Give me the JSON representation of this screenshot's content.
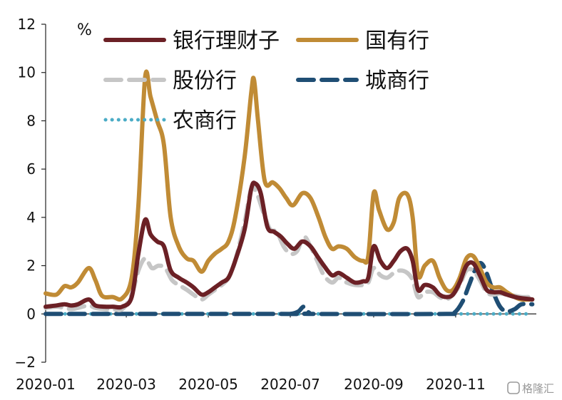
{
  "chart_data": {
    "type": "line",
    "title": "",
    "xlabel": "",
    "ylabel": "",
    "unit": "%",
    "ylim": [
      -2,
      12
    ],
    "yticks": [
      -2,
      0,
      2,
      4,
      6,
      8,
      10,
      12
    ],
    "xlim": [
      "2020-01-01",
      "2020-12-31"
    ],
    "xticks": [
      {
        "date": "2020-01-01",
        "label": "2020-01"
      },
      {
        "date": "2020-03-01",
        "label": "2020-03"
      },
      {
        "date": "2020-05-01",
        "label": "2020-05"
      },
      {
        "date": "2020-07-01",
        "label": "2020-07"
      },
      {
        "date": "2020-09-01",
        "label": "2020-09"
      },
      {
        "date": "2020-11-01",
        "label": "2020-11"
      }
    ],
    "grid": false,
    "legend_position": "top",
    "series": [
      {
        "name": "国有行",
        "color": "#c08b35",
        "style": "solid",
        "points": [
          [
            "2020-01-01",
            0.85
          ],
          [
            "2020-01-09",
            0.8
          ],
          [
            "2020-01-15",
            1.15
          ],
          [
            "2020-01-20",
            1.1
          ],
          [
            "2020-01-25",
            1.3
          ],
          [
            "2020-02-02",
            1.9
          ],
          [
            "2020-02-07",
            1.4
          ],
          [
            "2020-02-12",
            0.75
          ],
          [
            "2020-02-20",
            0.7
          ],
          [
            "2020-02-27",
            0.65
          ],
          [
            "2020-03-05",
            1.5
          ],
          [
            "2020-03-10",
            4.5
          ],
          [
            "2020-03-15",
            9.8
          ],
          [
            "2020-03-19",
            9.0
          ],
          [
            "2020-03-24",
            8.0
          ],
          [
            "2020-03-29",
            7.0
          ],
          [
            "2020-04-03",
            4.0
          ],
          [
            "2020-04-09",
            2.8
          ],
          [
            "2020-04-15",
            2.3
          ],
          [
            "2020-04-20",
            2.2
          ],
          [
            "2020-04-26",
            1.75
          ],
          [
            "2020-05-01",
            2.2
          ],
          [
            "2020-05-06",
            2.5
          ],
          [
            "2020-05-11",
            2.7
          ],
          [
            "2020-05-16",
            3.0
          ],
          [
            "2020-05-21",
            4.0
          ],
          [
            "2020-05-28",
            6.5
          ],
          [
            "2020-06-02",
            9.2
          ],
          [
            "2020-06-04",
            9.7
          ],
          [
            "2020-06-07",
            8.0
          ],
          [
            "2020-06-12",
            5.5
          ],
          [
            "2020-06-18",
            5.45
          ],
          [
            "2020-06-23",
            5.2
          ],
          [
            "2020-06-28",
            4.8
          ],
          [
            "2020-07-03",
            4.5
          ],
          [
            "2020-07-10",
            5.0
          ],
          [
            "2020-07-16",
            4.8
          ],
          [
            "2020-07-22",
            4.0
          ],
          [
            "2020-07-27",
            3.2
          ],
          [
            "2020-08-01",
            2.7
          ],
          [
            "2020-08-06",
            2.8
          ],
          [
            "2020-08-12",
            2.7
          ],
          [
            "2020-08-18",
            2.35
          ],
          [
            "2020-08-24",
            2.2
          ],
          [
            "2020-08-28",
            2.4
          ],
          [
            "2020-09-01",
            5.0
          ],
          [
            "2020-09-05",
            4.3
          ],
          [
            "2020-09-11",
            3.5
          ],
          [
            "2020-09-16",
            3.8
          ],
          [
            "2020-09-20",
            4.8
          ],
          [
            "2020-09-26",
            4.95
          ],
          [
            "2020-09-30",
            4.0
          ],
          [
            "2020-10-04",
            1.6
          ],
          [
            "2020-10-09",
            2.0
          ],
          [
            "2020-10-15",
            2.2
          ],
          [
            "2020-10-20",
            1.5
          ],
          [
            "2020-10-25",
            1.0
          ],
          [
            "2020-10-30",
            1.0
          ],
          [
            "2020-11-04",
            1.5
          ],
          [
            "2020-11-09",
            2.3
          ],
          [
            "2020-11-14",
            2.4
          ],
          [
            "2020-11-19",
            1.9
          ],
          [
            "2020-11-24",
            1.3
          ],
          [
            "2020-11-29",
            1.1
          ],
          [
            "2020-12-04",
            1.1
          ],
          [
            "2020-12-09",
            0.9
          ],
          [
            "2020-12-15",
            0.7
          ],
          [
            "2020-12-20",
            0.6
          ],
          [
            "2020-12-28",
            0.6
          ]
        ]
      },
      {
        "name": "银行理财子",
        "color": "#6b2025",
        "style": "solid",
        "points": [
          [
            "2020-01-01",
            0.3
          ],
          [
            "2020-01-09",
            0.35
          ],
          [
            "2020-01-15",
            0.4
          ],
          [
            "2020-01-20",
            0.35
          ],
          [
            "2020-01-25",
            0.4
          ],
          [
            "2020-02-02",
            0.6
          ],
          [
            "2020-02-07",
            0.35
          ],
          [
            "2020-02-14",
            0.3
          ],
          [
            "2020-02-20",
            0.3
          ],
          [
            "2020-02-27",
            0.3
          ],
          [
            "2020-03-05",
            0.7
          ],
          [
            "2020-03-10",
            2.5
          ],
          [
            "2020-03-15",
            3.9
          ],
          [
            "2020-03-19",
            3.3
          ],
          [
            "2020-03-24",
            3.0
          ],
          [
            "2020-03-29",
            2.8
          ],
          [
            "2020-04-03",
            1.8
          ],
          [
            "2020-04-09",
            1.5
          ],
          [
            "2020-04-15",
            1.3
          ],
          [
            "2020-04-20",
            1.1
          ],
          [
            "2020-04-26",
            0.8
          ],
          [
            "2020-05-01",
            0.9
          ],
          [
            "2020-05-06",
            1.1
          ],
          [
            "2020-05-11",
            1.3
          ],
          [
            "2020-05-16",
            1.5
          ],
          [
            "2020-05-21",
            2.2
          ],
          [
            "2020-05-28",
            3.5
          ],
          [
            "2020-06-02",
            5.2
          ],
          [
            "2020-06-05",
            5.4
          ],
          [
            "2020-06-09",
            5.0
          ],
          [
            "2020-06-14",
            3.6
          ],
          [
            "2020-06-19",
            3.4
          ],
          [
            "2020-06-24",
            3.2
          ],
          [
            "2020-06-29",
            2.9
          ],
          [
            "2020-07-04",
            2.7
          ],
          [
            "2020-07-10",
            3.0
          ],
          [
            "2020-07-16",
            2.8
          ],
          [
            "2020-07-21",
            2.4
          ],
          [
            "2020-07-26",
            2.0
          ],
          [
            "2020-08-01",
            1.6
          ],
          [
            "2020-08-06",
            1.7
          ],
          [
            "2020-08-12",
            1.5
          ],
          [
            "2020-08-18",
            1.3
          ],
          [
            "2020-08-24",
            1.35
          ],
          [
            "2020-08-28",
            1.5
          ],
          [
            "2020-09-01",
            2.8
          ],
          [
            "2020-09-06",
            2.2
          ],
          [
            "2020-09-11",
            1.9
          ],
          [
            "2020-09-16",
            2.2
          ],
          [
            "2020-09-21",
            2.6
          ],
          [
            "2020-09-26",
            2.7
          ],
          [
            "2020-09-30",
            2.2
          ],
          [
            "2020-10-04",
            1.0
          ],
          [
            "2020-10-09",
            1.2
          ],
          [
            "2020-10-15",
            1.1
          ],
          [
            "2020-10-20",
            0.8
          ],
          [
            "2020-10-25",
            0.7
          ],
          [
            "2020-10-30",
            0.8
          ],
          [
            "2020-11-04",
            1.3
          ],
          [
            "2020-11-09",
            2.0
          ],
          [
            "2020-11-14",
            2.1
          ],
          [
            "2020-11-19",
            1.6
          ],
          [
            "2020-11-24",
            1.0
          ],
          [
            "2020-11-29",
            0.9
          ],
          [
            "2020-12-04",
            0.9
          ],
          [
            "2020-12-09",
            0.8
          ],
          [
            "2020-12-15",
            0.7
          ],
          [
            "2020-12-20",
            0.65
          ],
          [
            "2020-12-28",
            0.6
          ]
        ]
      },
      {
        "name": "股份行",
        "color": "#c6c6c6",
        "style": "dash",
        "points": [
          [
            "2020-01-01",
            0.25
          ],
          [
            "2020-01-09",
            0.3
          ],
          [
            "2020-01-15",
            0.25
          ],
          [
            "2020-01-20",
            0.2
          ],
          [
            "2020-01-25",
            0.25
          ],
          [
            "2020-02-02",
            0.35
          ],
          [
            "2020-02-07",
            0.25
          ],
          [
            "2020-02-14",
            0.2
          ],
          [
            "2020-02-20",
            0.2
          ],
          [
            "2020-02-27",
            0.2
          ],
          [
            "2020-03-05",
            0.8
          ],
          [
            "2020-03-10",
            1.8
          ],
          [
            "2020-03-15",
            2.3
          ],
          [
            "2020-03-20",
            1.9
          ],
          [
            "2020-03-25",
            2.0
          ],
          [
            "2020-03-30",
            1.9
          ],
          [
            "2020-04-04",
            1.4
          ],
          [
            "2020-04-09",
            1.2
          ],
          [
            "2020-04-15",
            1.0
          ],
          [
            "2020-04-20",
            0.8
          ],
          [
            "2020-04-26",
            0.6
          ],
          [
            "2020-05-01",
            0.8
          ],
          [
            "2020-05-06",
            1.0
          ],
          [
            "2020-05-11",
            1.2
          ],
          [
            "2020-05-16",
            1.5
          ],
          [
            "2020-05-21",
            2.2
          ],
          [
            "2020-05-28",
            3.8
          ],
          [
            "2020-06-02",
            5.2
          ],
          [
            "2020-06-06",
            5.0
          ],
          [
            "2020-06-11",
            4.2
          ],
          [
            "2020-06-16",
            3.5
          ],
          [
            "2020-06-21",
            3.4
          ],
          [
            "2020-06-26",
            2.8
          ],
          [
            "2020-07-01",
            2.5
          ],
          [
            "2020-07-06",
            2.6
          ],
          [
            "2020-07-11",
            3.2
          ],
          [
            "2020-07-16",
            2.8
          ],
          [
            "2020-07-21",
            2.2
          ],
          [
            "2020-07-26",
            1.6
          ],
          [
            "2020-08-01",
            1.3
          ],
          [
            "2020-08-06",
            1.5
          ],
          [
            "2020-08-12",
            1.3
          ],
          [
            "2020-08-18",
            1.2
          ],
          [
            "2020-08-24",
            1.2
          ],
          [
            "2020-08-28",
            1.3
          ],
          [
            "2020-09-01",
            1.9
          ],
          [
            "2020-09-06",
            1.6
          ],
          [
            "2020-09-11",
            1.5
          ],
          [
            "2020-09-16",
            1.7
          ],
          [
            "2020-09-21",
            1.8
          ],
          [
            "2020-09-26",
            1.7
          ],
          [
            "2020-09-30",
            1.4
          ],
          [
            "2020-10-04",
            0.7
          ],
          [
            "2020-10-09",
            0.9
          ],
          [
            "2020-10-15",
            0.9
          ],
          [
            "2020-10-20",
            0.7
          ],
          [
            "2020-10-25",
            0.6
          ],
          [
            "2020-10-30",
            0.8
          ],
          [
            "2020-11-04",
            1.2
          ],
          [
            "2020-11-09",
            1.8
          ],
          [
            "2020-11-14",
            1.8
          ],
          [
            "2020-11-19",
            1.4
          ],
          [
            "2020-11-24",
            0.9
          ],
          [
            "2020-11-29",
            0.8
          ],
          [
            "2020-12-04",
            0.85
          ],
          [
            "2020-12-09",
            0.8
          ],
          [
            "2020-12-15",
            0.75
          ],
          [
            "2020-12-20",
            0.7
          ],
          [
            "2020-12-28",
            0.7
          ]
        ]
      },
      {
        "name": "城商行",
        "color": "#1f4e74",
        "style": "dash",
        "points": [
          [
            "2020-01-01",
            0.0
          ],
          [
            "2020-06-20",
            0.0
          ],
          [
            "2020-07-01",
            0.0
          ],
          [
            "2020-07-07",
            0.1
          ],
          [
            "2020-07-11",
            0.3
          ],
          [
            "2020-07-15",
            0.05
          ],
          [
            "2020-07-20",
            0.0
          ],
          [
            "2020-10-25",
            0.0
          ],
          [
            "2020-10-31",
            0.05
          ],
          [
            "2020-11-06",
            0.5
          ],
          [
            "2020-11-11",
            1.2
          ],
          [
            "2020-11-16",
            1.9
          ],
          [
            "2020-11-20",
            2.1
          ],
          [
            "2020-11-24",
            1.7
          ],
          [
            "2020-11-29",
            0.9
          ],
          [
            "2020-12-04",
            0.3
          ],
          [
            "2020-12-09",
            0.1
          ],
          [
            "2020-12-15",
            0.2
          ],
          [
            "2020-12-20",
            0.4
          ],
          [
            "2020-12-28",
            0.4
          ]
        ]
      },
      {
        "name": "农商行",
        "color": "#4bacc6",
        "style": "dot",
        "points": [
          [
            "2020-01-01",
            0.0
          ],
          [
            "2020-12-28",
            0.0
          ]
        ]
      }
    ]
  },
  "watermark": "格隆汇"
}
